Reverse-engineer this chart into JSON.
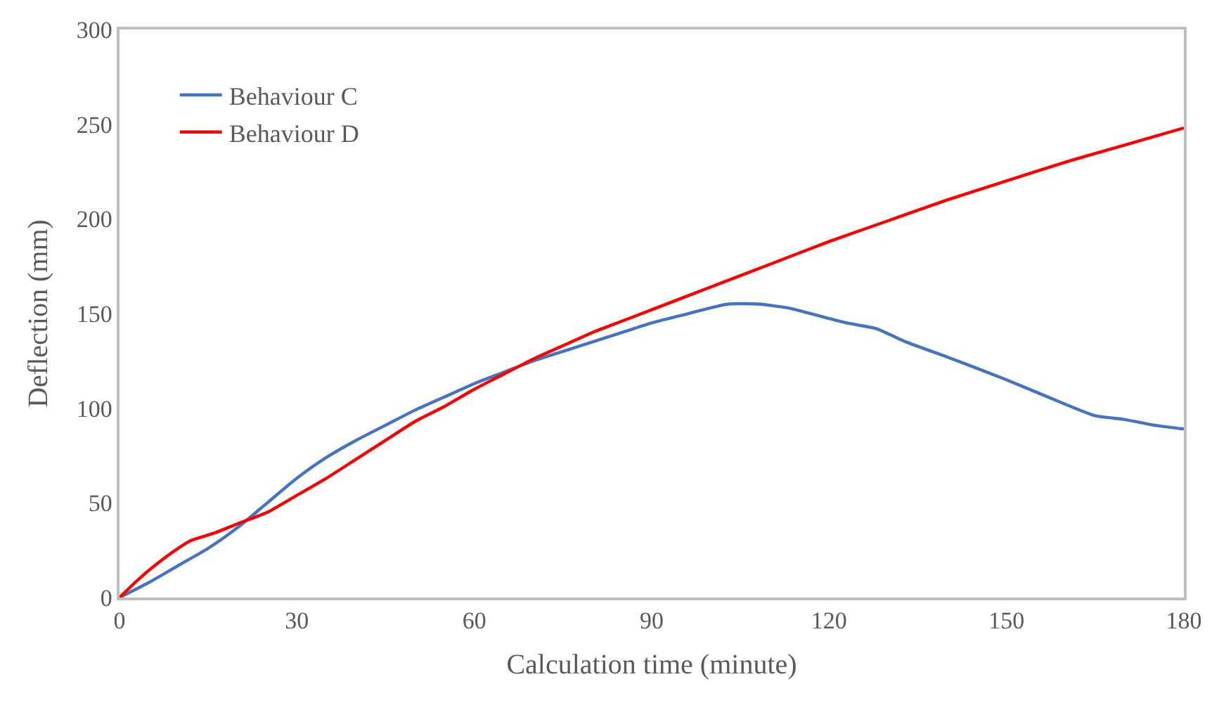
{
  "chart_data": {
    "type": "line",
    "xlabel": "Calculation time (minute)",
    "ylabel": "Deflection (mm)",
    "xlim": [
      0,
      180
    ],
    "xticks": [
      0,
      30,
      60,
      90,
      120,
      150,
      180
    ],
    "ylim": [
      0,
      300
    ],
    "yticks": [
      0,
      50,
      100,
      150,
      200,
      250,
      300
    ],
    "legend": "top left",
    "marker": "none",
    "line_style": "solid",
    "series": [
      {
        "name": "Behaviour C",
        "color": "#4472c4",
        "x": [
          0,
          5,
          10,
          15,
          20,
          25,
          30,
          35,
          40,
          45,
          50,
          55,
          60,
          65,
          70,
          75,
          80,
          85,
          90,
          95,
          100,
          103,
          108,
          113,
          118,
          123,
          128,
          133,
          140,
          150,
          160,
          165,
          170,
          175,
          180
        ],
        "values": [
          0,
          8,
          17,
          26,
          37,
          50,
          63,
          74,
          83,
          91,
          99,
          106,
          113,
          119,
          125,
          130,
          135,
          140,
          145,
          149,
          153,
          155,
          155,
          153,
          149,
          145,
          142,
          135,
          127,
          115,
          102,
          96,
          94,
          91,
          89
        ]
      },
      {
        "name": "Behaviour D",
        "color": "#ff0000",
        "x": [
          0,
          3,
          6,
          9,
          12,
          16,
          20,
          25,
          30,
          35,
          40,
          45,
          50,
          55,
          60,
          65,
          70,
          75,
          80,
          85,
          90,
          100,
          110,
          120,
          130,
          140,
          150,
          160,
          170,
          180
        ],
        "values": [
          0,
          9,
          17,
          24,
          30,
          34,
          39,
          45,
          54,
          63,
          73,
          83,
          93,
          101,
          110,
          118,
          126,
          133,
          140,
          146,
          152,
          164,
          176,
          188,
          199,
          210,
          220,
          230,
          239,
          248
        ]
      }
    ]
  }
}
